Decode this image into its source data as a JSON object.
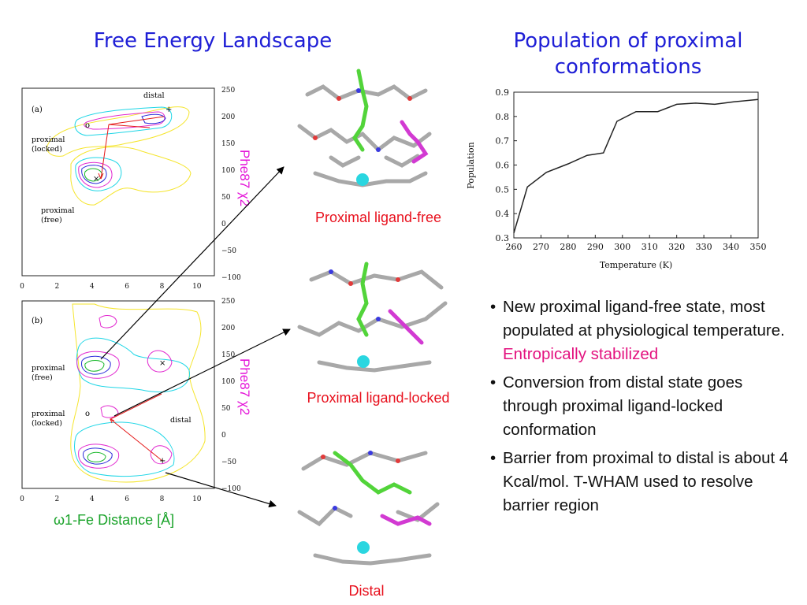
{
  "titles": {
    "landscape": "Free Energy Landscape",
    "population": "Population of proximal conformations"
  },
  "landscape": {
    "xaxis_label": "ω1-Fe Distance [Å]",
    "yaxis_label": "Phe87 χ2",
    "panel_a": {
      "tag": "(a)",
      "labels": {
        "distal": "distal",
        "proximal_locked": "proximal\n(locked)",
        "proximal_free": "proximal\n(free)"
      }
    },
    "panel_b": {
      "tag": "(b)",
      "labels": {
        "proximal_free": "proximal\n(free)",
        "proximal_locked": "proximal\n(locked)",
        "distal": "distal"
      }
    },
    "x_ticks": [
      "0",
      "2",
      "4",
      "6",
      "8",
      "10"
    ],
    "y_ticks_a": [
      "250",
      "200",
      "150",
      "100",
      "50",
      "0",
      "−50",
      "−100"
    ],
    "y_ticks_b": [
      "250",
      "200",
      "150",
      "100",
      "50",
      "0",
      "−50",
      "−100"
    ]
  },
  "structures": {
    "captions": [
      "Proximal ligand-free",
      "Proximal ligand-locked",
      "Distal"
    ]
  },
  "bullets": [
    {
      "text": "New proximal ligand-free state, most populated at physiological temperature. ",
      "highlight": "Entropically stabilized"
    },
    {
      "text": "Conversion from distal state goes through proximal ligand-locked conformation",
      "highlight": ""
    },
    {
      "text": "Barrier from proximal to distal is about 4 Kcal/mol. T-WHAM used to resolve barrier region",
      "highlight": ""
    }
  ],
  "colors": {
    "title": "#1f1fd6",
    "caption": "#e8101d",
    "xaxis": "#1aa32a",
    "yaxis": "#e413d8",
    "highlight": "#e3127f"
  },
  "chart_data": [
    {
      "type": "line",
      "x": [
        260,
        265,
        272,
        280,
        287,
        293,
        298,
        305,
        313,
        320,
        327,
        334,
        341,
        350
      ],
      "values": [
        0.32,
        0.51,
        0.57,
        0.605,
        0.64,
        0.65,
        0.78,
        0.82,
        0.82,
        0.85,
        0.855,
        0.85,
        0.86,
        0.87
      ],
      "xlabel": "Temperature (K)",
      "ylabel": "Population",
      "xlim": [
        260,
        350
      ],
      "ylim": [
        0.3,
        0.9
      ],
      "x_ticks": [
        260,
        270,
        280,
        290,
        300,
        310,
        320,
        330,
        340,
        350
      ],
      "y_ticks": [
        0.3,
        0.4,
        0.5,
        0.6,
        0.7,
        0.8,
        0.9
      ],
      "grid": false
    }
  ]
}
